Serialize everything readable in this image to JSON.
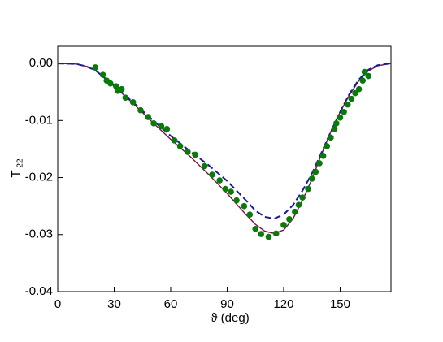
{
  "chart_data": {
    "type": "line",
    "xlabel": "ϑ (deg)",
    "ylabel": "T",
    "ylabel_subscript": "22",
    "xlim": [
      0,
      177
    ],
    "ylim": [
      -0.04,
      0.003
    ],
    "xticks": [
      0,
      30,
      60,
      90,
      120,
      150
    ],
    "yticks": [
      {
        "value": 0,
        "label": "0.00"
      },
      {
        "value": -0.01,
        "label": "-0.01"
      },
      {
        "value": -0.02,
        "label": "-0.02"
      },
      {
        "value": -0.03,
        "label": "-0.03"
      },
      {
        "value": -0.04,
        "label": "-0.04"
      }
    ],
    "series": [
      {
        "style": "solid",
        "color": "#7a1040",
        "x": [
          0,
          10,
          15,
          20,
          30,
          40,
          50,
          60,
          70,
          80,
          90,
          100,
          105,
          110,
          115,
          120,
          125,
          130,
          135,
          140,
          145,
          150,
          155,
          160,
          165,
          170,
          177
        ],
        "values": [
          0,
          -0.0001,
          -0.0005,
          -0.0012,
          -0.004,
          -0.007,
          -0.0102,
          -0.0133,
          -0.0162,
          -0.0194,
          -0.0228,
          -0.0265,
          -0.0282,
          -0.0294,
          -0.0298,
          -0.0292,
          -0.0272,
          -0.024,
          -0.0203,
          -0.016,
          -0.012,
          -0.0085,
          -0.0055,
          -0.003,
          -0.0013,
          -0.0004,
          0
        ]
      },
      {
        "style": "dashed",
        "color": "#1a1a9a",
        "x": [
          0,
          10,
          15,
          20,
          30,
          40,
          50,
          60,
          70,
          80,
          90,
          100,
          105,
          110,
          115,
          120,
          125,
          130,
          135,
          140,
          145,
          150,
          155,
          160,
          165,
          170,
          177
        ],
        "values": [
          0,
          -0.0001,
          -0.0005,
          -0.0012,
          -0.0039,
          -0.0068,
          -0.0098,
          -0.0127,
          -0.0153,
          -0.0178,
          -0.0206,
          -0.024,
          -0.0258,
          -0.0269,
          -0.0272,
          -0.0265,
          -0.0248,
          -0.0223,
          -0.0193,
          -0.0157,
          -0.012,
          -0.0085,
          -0.0053,
          -0.0028,
          -0.0011,
          -0.0003,
          0
        ]
      },
      {
        "style": "markers",
        "color": "#0a7a0a",
        "x": [
          20,
          24,
          26,
          28,
          31,
          32,
          34,
          36,
          40,
          44,
          48,
          51,
          55,
          58,
          62,
          65,
          69,
          73,
          78,
          82,
          86,
          89,
          92,
          95,
          99,
          102,
          105,
          108,
          112,
          116,
          120,
          123,
          126,
          128,
          130,
          133,
          135,
          137,
          139,
          141,
          143,
          145,
          147,
          148,
          150,
          152,
          154,
          156,
          158,
          160,
          162,
          163,
          165
        ],
        "values": [
          -0.0007,
          -0.002,
          -0.003,
          -0.0035,
          -0.004,
          -0.0048,
          -0.0045,
          -0.006,
          -0.0068,
          -0.0082,
          -0.0094,
          -0.0105,
          -0.011,
          -0.0115,
          -0.0135,
          -0.0145,
          -0.0155,
          -0.016,
          -0.018,
          -0.0195,
          -0.0205,
          -0.022,
          -0.0225,
          -0.024,
          -0.025,
          -0.0265,
          -0.029,
          -0.0299,
          -0.0304,
          -0.0298,
          -0.0283,
          -0.0273,
          -0.026,
          -0.0248,
          -0.0235,
          -0.022,
          -0.0202,
          -0.019,
          -0.0175,
          -0.0162,
          -0.0145,
          -0.013,
          -0.0115,
          -0.0105,
          -0.0095,
          -0.0085,
          -0.0072,
          -0.0062,
          -0.0052,
          -0.0045,
          -0.003,
          -0.0015,
          -0.0022
        ]
      }
    ]
  }
}
